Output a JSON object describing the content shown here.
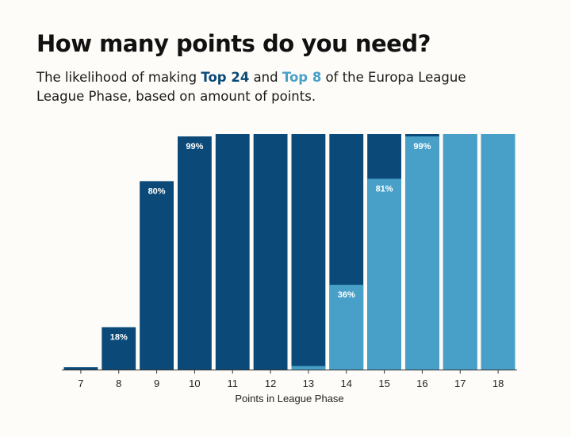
{
  "header": {
    "title": "How many points do you need?",
    "subtitle_part1": "The likelihood of making ",
    "top24_label": "Top 24",
    "subtitle_part2": " and ",
    "top8_label": "Top 8",
    "subtitle_part3": " of the Europa League League Phase, based on amount of points."
  },
  "chart_data": {
    "type": "bar",
    "xlabel": "Points in League Phase",
    "ylim": [
      0,
      100
    ],
    "categories": [
      "7",
      "8",
      "9",
      "10",
      "11",
      "12",
      "13",
      "14",
      "15",
      "16",
      "17",
      "18"
    ],
    "series": [
      {
        "name": "Top 24",
        "color": "#0b4a78",
        "values": [
          1,
          18,
          80,
          99,
          100,
          100,
          100,
          100,
          100,
          100,
          100,
          100
        ],
        "labels": [
          "",
          "18%",
          "80%",
          "99%",
          "",
          "",
          "",
          "",
          "",
          "",
          "",
          ""
        ]
      },
      {
        "name": "Top 8",
        "color": "#48a0c9",
        "values": [
          0,
          0,
          0,
          0,
          0,
          0,
          1.5,
          36,
          81,
          99,
          100,
          100
        ],
        "labels": [
          "",
          "",
          "",
          "",
          "",
          "",
          "",
          "36%",
          "81%",
          "99%",
          "",
          ""
        ]
      }
    ]
  }
}
